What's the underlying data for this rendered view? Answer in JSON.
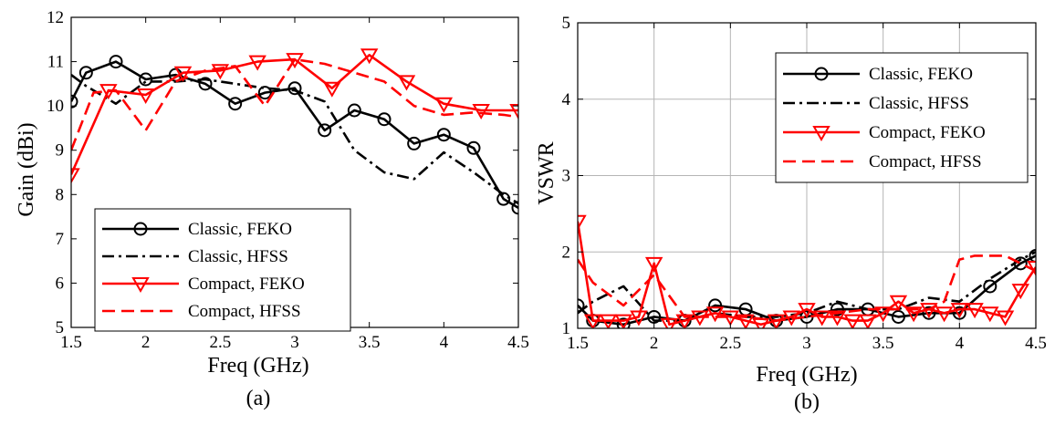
{
  "chart_data": [
    {
      "type": "line",
      "caption": "(a)",
      "xlabel": "Freq (GHz)",
      "ylabel": "Gain (dBi)",
      "xlim": [
        1.5,
        4.5
      ],
      "ylim": [
        5,
        12
      ],
      "xticks": [
        1.5,
        2,
        2.5,
        3,
        3.5,
        4,
        4.5
      ],
      "yticks": [
        5,
        6,
        7,
        8,
        9,
        10,
        11,
        12
      ],
      "xtick_labels": [
        "1.5",
        "2",
        "2.5",
        "3",
        "3.5",
        "4",
        "4.5"
      ],
      "ytick_labels": [
        "5",
        "6",
        "7",
        "8",
        "9",
        "10",
        "11",
        "12"
      ],
      "grid": false,
      "legend_position": "bottom-left",
      "series": [
        {
          "name": "Classic, FEKO",
          "color": "#000000",
          "dash": "solid",
          "marker": "circle",
          "x": [
            1.5,
            1.6,
            1.8,
            2.0,
            2.2,
            2.4,
            2.6,
            2.8,
            3.0,
            3.2,
            3.4,
            3.6,
            3.8,
            4.0,
            4.2,
            4.4,
            4.5
          ],
          "y": [
            10.1,
            10.75,
            11.0,
            10.6,
            10.7,
            10.5,
            10.05,
            10.3,
            10.4,
            9.45,
            9.9,
            9.7,
            9.15,
            9.35,
            9.05,
            7.9,
            7.7
          ]
        },
        {
          "name": "Classic, HFSS",
          "color": "#000000",
          "dash": "dashdot",
          "marker": "none",
          "x": [
            1.5,
            1.6,
            1.8,
            2.0,
            2.2,
            2.4,
            2.6,
            2.8,
            3.0,
            3.2,
            3.4,
            3.6,
            3.8,
            4.0,
            4.2,
            4.4,
            4.5
          ],
          "y": [
            10.7,
            10.45,
            10.05,
            10.55,
            10.55,
            10.6,
            10.5,
            10.4,
            10.35,
            10.1,
            9.0,
            8.5,
            8.35,
            8.95,
            8.5,
            8.0,
            7.8
          ]
        },
        {
          "name": "Compact, FEKO",
          "color": "#ff0000",
          "dash": "solid",
          "marker": "triangle-down",
          "x": [
            1.5,
            1.75,
            2.0,
            2.25,
            2.5,
            2.75,
            3.0,
            3.25,
            3.5,
            3.75,
            4.0,
            4.25,
            4.5
          ],
          "y": [
            8.45,
            10.35,
            10.25,
            10.75,
            10.8,
            11.0,
            11.05,
            10.4,
            11.15,
            10.55,
            10.05,
            9.9,
            9.9
          ]
        },
        {
          "name": "Compact, HFSS",
          "color": "#ff0000",
          "dash": "dashed",
          "marker": "none",
          "x": [
            1.5,
            1.65,
            1.8,
            2.0,
            2.2,
            2.4,
            2.6,
            2.8,
            3.0,
            3.2,
            3.4,
            3.6,
            3.8,
            4.0,
            4.2,
            4.4,
            4.5
          ],
          "y": [
            9.0,
            10.3,
            10.35,
            9.45,
            10.55,
            10.8,
            10.9,
            10.0,
            11.05,
            10.95,
            10.75,
            10.55,
            10.0,
            9.8,
            9.85,
            9.8,
            9.75
          ]
        }
      ]
    },
    {
      "type": "line",
      "caption": "(b)",
      "xlabel": "Freq (GHz)",
      "ylabel": "VSWR",
      "xlim": [
        1.5,
        4.5
      ],
      "ylim": [
        1,
        5
      ],
      "xticks": [
        1.5,
        2,
        2.5,
        3,
        3.5,
        4,
        4.5
      ],
      "yticks": [
        1,
        2,
        3,
        4,
        5
      ],
      "xtick_labels": [
        "1.5",
        "2",
        "2.5",
        "3",
        "3.5",
        "4",
        "4.5"
      ],
      "ytick_labels": [
        "1",
        "2",
        "3",
        "4",
        "5"
      ],
      "grid": true,
      "legend_position": "top-right",
      "series": [
        {
          "name": "Classic, FEKO",
          "color": "#000000",
          "dash": "solid",
          "marker": "circle",
          "x": [
            1.5,
            1.6,
            1.8,
            2.0,
            2.2,
            2.4,
            2.6,
            2.8,
            3.0,
            3.2,
            3.4,
            3.6,
            3.8,
            4.0,
            4.2,
            4.4,
            4.5
          ],
          "y": [
            1.3,
            1.1,
            1.05,
            1.15,
            1.1,
            1.3,
            1.25,
            1.1,
            1.15,
            1.25,
            1.25,
            1.15,
            1.2,
            1.2,
            1.55,
            1.85,
            1.95
          ]
        },
        {
          "name": "Classic, HFSS",
          "color": "#000000",
          "dash": "dashdot",
          "marker": "none",
          "x": [
            1.5,
            1.6,
            1.8,
            2.0,
            2.2,
            2.4,
            2.6,
            2.8,
            3.0,
            3.2,
            3.4,
            3.6,
            3.8,
            4.0,
            4.2,
            4.4,
            4.5
          ],
          "y": [
            1.2,
            1.35,
            1.55,
            1.1,
            1.1,
            1.2,
            1.15,
            1.15,
            1.2,
            1.35,
            1.25,
            1.25,
            1.4,
            1.35,
            1.65,
            1.9,
            2.0
          ]
        },
        {
          "name": "Compact, FEKO",
          "color": "#ff0000",
          "dash": "solid",
          "marker": "triangle-down",
          "x": [
            1.5,
            1.6,
            1.7,
            1.8,
            1.9,
            2.0,
            2.1,
            2.2,
            2.3,
            2.4,
            2.5,
            2.6,
            2.7,
            2.8,
            2.9,
            3.0,
            3.1,
            3.2,
            3.3,
            3.4,
            3.5,
            3.6,
            3.7,
            3.8,
            3.9,
            4.0,
            4.1,
            4.2,
            4.3,
            4.4,
            4.5
          ],
          "y": [
            2.4,
            1.1,
            1.1,
            1.1,
            1.15,
            1.85,
            1.05,
            1.1,
            1.15,
            1.2,
            1.15,
            1.1,
            1.05,
            1.1,
            1.15,
            1.25,
            1.15,
            1.15,
            1.1,
            1.1,
            1.2,
            1.35,
            1.2,
            1.25,
            1.2,
            1.25,
            1.25,
            1.2,
            1.15,
            1.5,
            1.8
          ]
        },
        {
          "name": "Compact, HFSS",
          "color": "#ff0000",
          "dash": "dashed",
          "marker": "none",
          "x": [
            1.5,
            1.6,
            1.8,
            2.0,
            2.2,
            2.4,
            2.6,
            2.8,
            3.0,
            3.2,
            3.4,
            3.6,
            3.8,
            3.9,
            4.0,
            4.1,
            4.2,
            4.3,
            4.4,
            4.5
          ],
          "y": [
            1.9,
            1.6,
            1.3,
            1.7,
            1.15,
            1.15,
            1.15,
            1.1,
            1.15,
            1.2,
            1.25,
            1.25,
            1.25,
            1.35,
            1.9,
            1.95,
            1.95,
            1.95,
            1.85,
            1.75
          ]
        }
      ]
    }
  ]
}
